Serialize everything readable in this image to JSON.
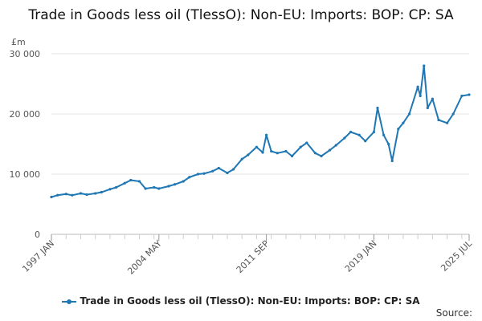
{
  "chart_data": {
    "type": "line",
    "title": "Trade in Goods less oil (TlessO): Non-EU: Imports: BOP: CP: SA",
    "ylabel": "£m",
    "ylim": [
      0,
      30000
    ],
    "yticks": [
      0,
      10000,
      20000,
      30000
    ],
    "ytick_labels": [
      "0",
      "10 000",
      "20 000",
      "30 000"
    ],
    "x_tick_labels": [
      "1997 JAN",
      "2004 MAY",
      "2011 SEP",
      "2019 JAN",
      "2025 JUL"
    ],
    "x_tick_positions": [
      "1997-01",
      "2004-05",
      "2011-09",
      "2019-01",
      "2025-07"
    ],
    "grid": "horizontal",
    "legend_position": "bottom",
    "color": "#1f77b4",
    "series": [
      {
        "name": "Trade in Goods less oil (TlessO): Non-EU: Imports: BOP: CP: SA",
        "points": [
          [
            "1997-01",
            6200
          ],
          [
            "1997-06",
            6500
          ],
          [
            "1998-01",
            6700
          ],
          [
            "1998-06",
            6500
          ],
          [
            "1999-01",
            6800
          ],
          [
            "1999-06",
            6600
          ],
          [
            "2000-01",
            6800
          ],
          [
            "2000-06",
            7000
          ],
          [
            "2001-01",
            7500
          ],
          [
            "2001-06",
            7800
          ],
          [
            "2002-01",
            8500
          ],
          [
            "2002-06",
            9000
          ],
          [
            "2003-01",
            8800
          ],
          [
            "2003-06",
            7600
          ],
          [
            "2004-01",
            7800
          ],
          [
            "2004-05",
            7600
          ],
          [
            "2005-01",
            8000
          ],
          [
            "2005-06",
            8300
          ],
          [
            "2006-01",
            8800
          ],
          [
            "2006-06",
            9500
          ],
          [
            "2007-01",
            10000
          ],
          [
            "2007-06",
            10100
          ],
          [
            "2008-01",
            10500
          ],
          [
            "2008-06",
            11000
          ],
          [
            "2009-01",
            10200
          ],
          [
            "2009-06",
            10800
          ],
          [
            "2010-01",
            12500
          ],
          [
            "2010-06",
            13200
          ],
          [
            "2011-01",
            14500
          ],
          [
            "2011-06",
            13600
          ],
          [
            "2011-09",
            16500
          ],
          [
            "2012-01",
            13800
          ],
          [
            "2012-06",
            13500
          ],
          [
            "2013-01",
            13800
          ],
          [
            "2013-06",
            13000
          ],
          [
            "2014-01",
            14500
          ],
          [
            "2014-06",
            15200
          ],
          [
            "2015-01",
            13500
          ],
          [
            "2015-06",
            13000
          ],
          [
            "2016-01",
            14000
          ],
          [
            "2016-06",
            14800
          ],
          [
            "2017-01",
            16000
          ],
          [
            "2017-06",
            17000
          ],
          [
            "2018-01",
            16500
          ],
          [
            "2018-06",
            15500
          ],
          [
            "2019-01",
            17000
          ],
          [
            "2019-04",
            21000
          ],
          [
            "2019-09",
            16500
          ],
          [
            "2020-01",
            15000
          ],
          [
            "2020-04",
            12200
          ],
          [
            "2020-09",
            17500
          ],
          [
            "2021-01",
            18500
          ],
          [
            "2021-06",
            20000
          ],
          [
            "2022-01",
            24500
          ],
          [
            "2022-03",
            23000
          ],
          [
            "2022-06",
            28000
          ],
          [
            "2022-09",
            21000
          ],
          [
            "2023-01",
            22500
          ],
          [
            "2023-06",
            19000
          ],
          [
            "2024-01",
            18500
          ],
          [
            "2024-06",
            20000
          ],
          [
            "2025-01",
            23000
          ],
          [
            "2025-07",
            23200
          ]
        ]
      }
    ]
  },
  "source_label": "Source:"
}
